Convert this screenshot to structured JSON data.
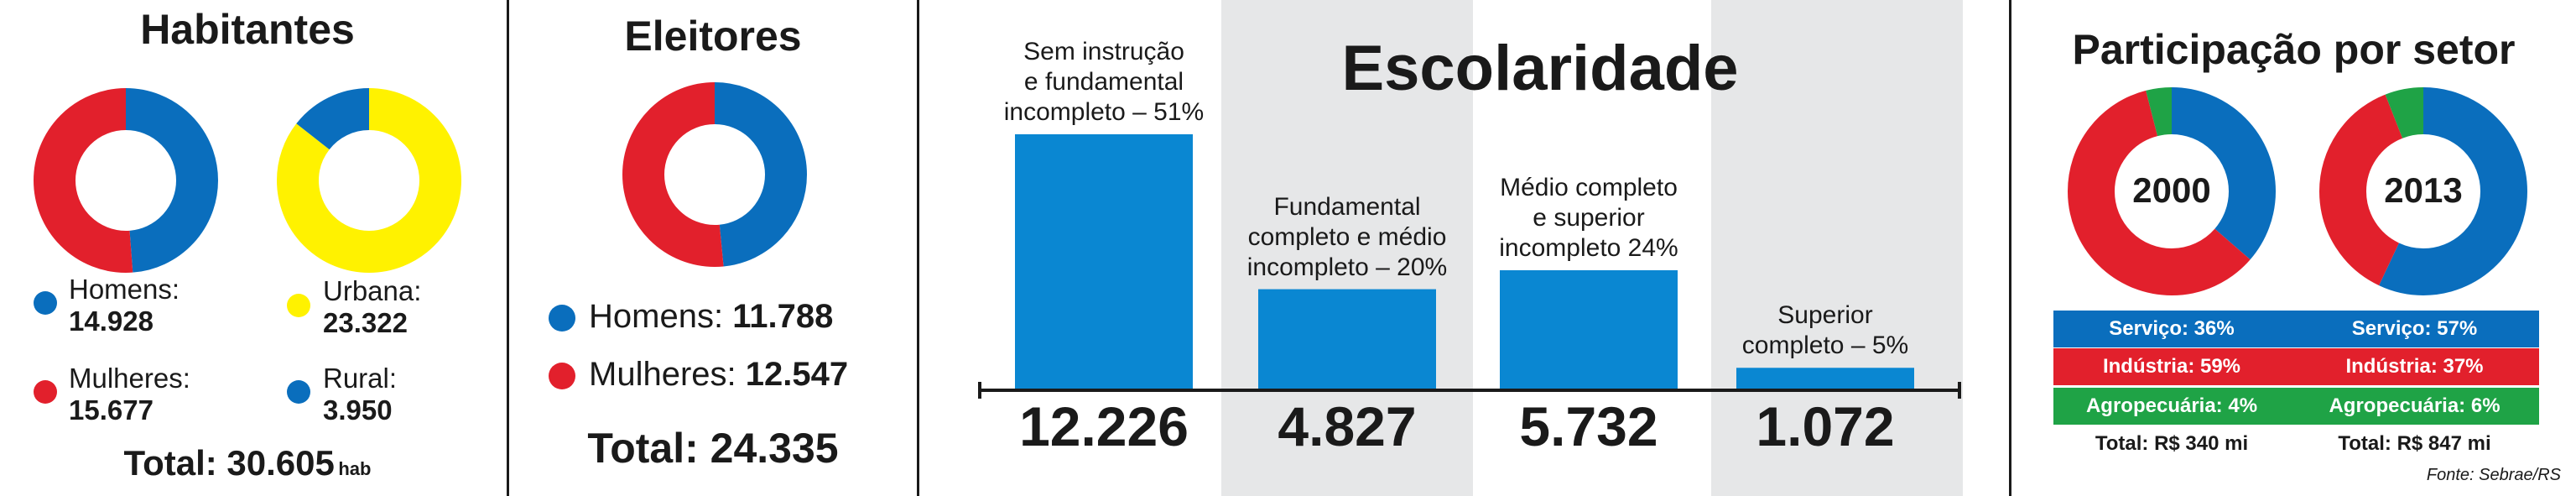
{
  "colors": {
    "blue": "#0a6ebd",
    "red": "#e2202c",
    "yellow": "#fff200",
    "green": "#1fa346",
    "bar": "#0a87d2",
    "shade": "#e6e7e8"
  },
  "habitantes": {
    "title": "Habitantes",
    "homens_label": "Homens:",
    "homens_value": "14.928",
    "mulheres_label": "Mulheres:",
    "mulheres_value": "15.677",
    "urbana_label": "Urbana:",
    "urbana_value": "23.322",
    "rural_label": "Rural:",
    "rural_value": "3.950",
    "total_label": "Total: 30.605",
    "total_unit": "hab",
    "donut_gender": [
      {
        "value": 14928,
        "color": "#0a6ebd"
      },
      {
        "value": 15677,
        "color": "#e2202c"
      }
    ],
    "donut_area": [
      {
        "value": 23322,
        "color": "#fff200"
      },
      {
        "value": 3950,
        "color": "#0a6ebd"
      }
    ]
  },
  "eleitores": {
    "title": "Eleitores",
    "homens_label": "Homens:",
    "homens_value": "11.788",
    "mulheres_label": "Mulheres:",
    "mulheres_value": "12.547",
    "total_label": "Total: 24.335",
    "donut": [
      {
        "value": 11788,
        "color": "#0a6ebd"
      },
      {
        "value": 12547,
        "color": "#e2202c"
      }
    ]
  },
  "chart_data": {
    "type": "bar",
    "title": "Escolaridade",
    "categories": [
      "Sem instrução e fundamental incompleto – 51%",
      "Fundamental completo e médio incompleto – 20%",
      "Médio completo e superior incompleto 24%",
      "Superior completo – 5%"
    ],
    "values": [
      12226,
      4827,
      5732,
      1072
    ],
    "value_labels": [
      "12.226",
      "4.827",
      "5.732",
      "1.072"
    ],
    "label_lines": [
      [
        "Sem instrução",
        "e fundamental",
        "incompleto – 51%"
      ],
      [
        "Fundamental",
        "completo e médio",
        "incompleto – 20%"
      ],
      [
        "Médio completo",
        "e superior",
        "incompleto 24%"
      ],
      [
        "Superior",
        "completo – 5%"
      ]
    ]
  },
  "participacao": {
    "title": "Participação por setor",
    "year_2000": "2000",
    "year_2013": "2013",
    "donut_2000": [
      {
        "value": 36,
        "color": "#0a6ebd"
      },
      {
        "value": 59,
        "color": "#e2202c"
      },
      {
        "value": 4,
        "color": "#1fa346"
      }
    ],
    "donut_2013": [
      {
        "value": 57,
        "color": "#0a6ebd"
      },
      {
        "value": 37,
        "color": "#e2202c"
      },
      {
        "value": 6,
        "color": "#1fa346"
      }
    ],
    "servico_2000": "Serviço: 36%",
    "servico_2013": "Serviço: 57%",
    "industria_2000": "Indústria: 59%",
    "industria_2013": "Indústria: 37%",
    "agro_2000": "Agropecuária: 4%",
    "agro_2013": "Agropecuária: 6%",
    "total_2000": "Total: R$ 340 mi",
    "total_2013": "Total: R$ 847 mi",
    "fonte": "Fonte: Sebrae/RS"
  }
}
